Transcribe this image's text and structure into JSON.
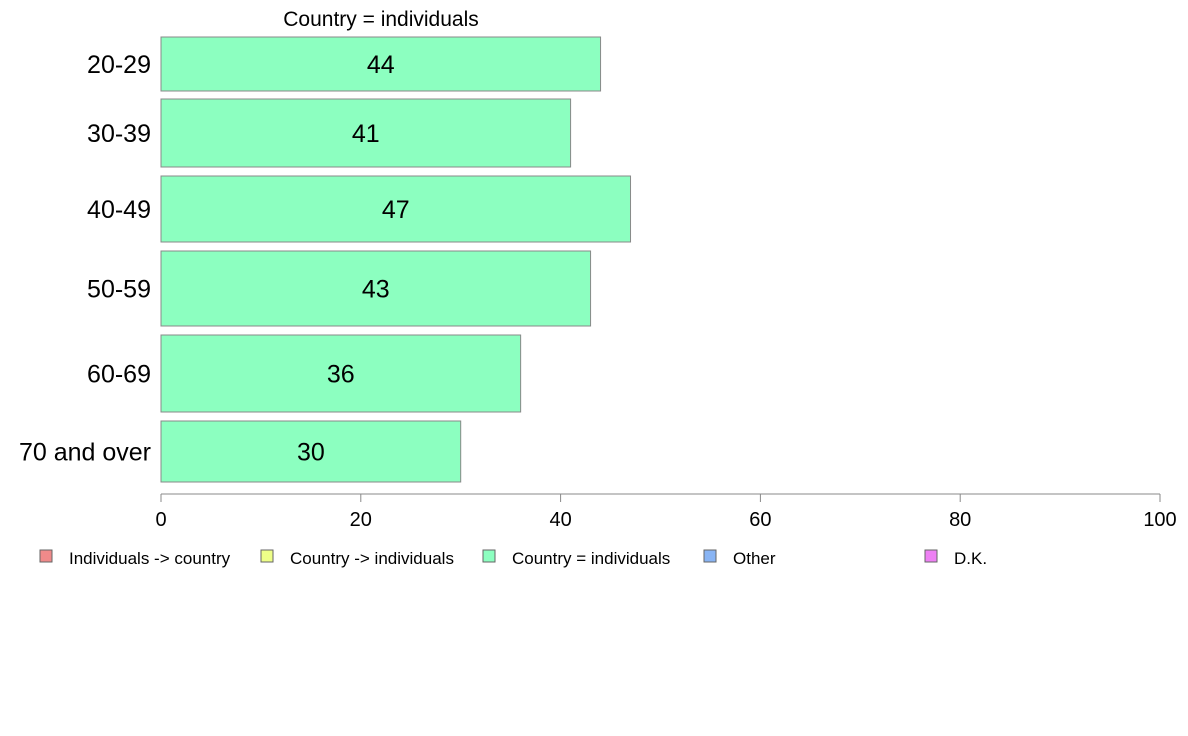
{
  "chart_data": {
    "type": "bar",
    "orientation": "horizontal",
    "title": "Country = individuals",
    "categories": [
      "20-29",
      "30-39",
      "40-49",
      "50-59",
      "60-69",
      "70 and over"
    ],
    "series": [
      {
        "name": "Country = individuals",
        "values": [
          44,
          41,
          47,
          43,
          36,
          30
        ],
        "color": "#8cffc0"
      }
    ],
    "data_labels": [
      "44",
      "41",
      "47",
      "43",
      "36",
      "30"
    ],
    "xlim": [
      0,
      100
    ],
    "xticks": [
      "0",
      "20",
      "40",
      "60",
      "80",
      "100"
    ],
    "xlabel": "",
    "ylabel": "",
    "grid": false,
    "legend_position": "bottom",
    "legend": [
      {
        "label": "Individuals -> country",
        "color": "#f08a8a"
      },
      {
        "label": "Country -> individuals",
        "color": "#eeff88"
      },
      {
        "label": "Country = individuals",
        "color": "#8cffc0"
      },
      {
        "label": "Other",
        "color": "#88b4f4"
      },
      {
        "label": "D.K.",
        "color": "#ee80f4"
      }
    ]
  }
}
